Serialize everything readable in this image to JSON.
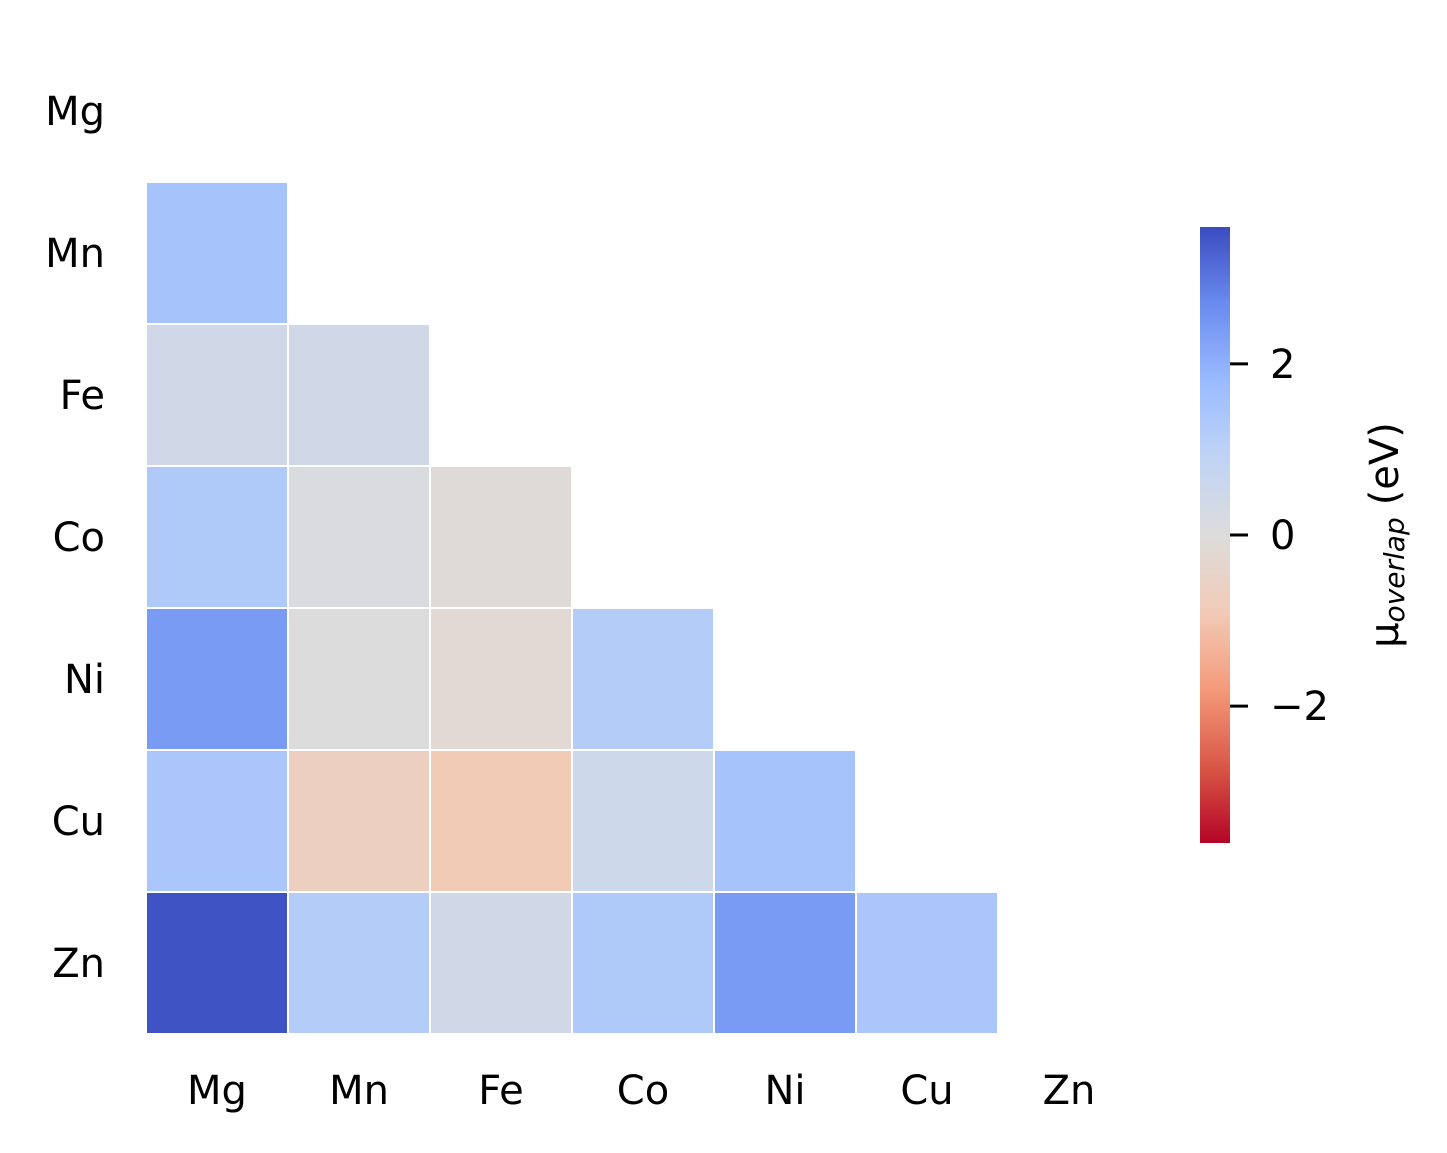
{
  "chart_data": {
    "type": "heatmap",
    "title": "",
    "xlabel": "",
    "ylabel": "",
    "categories": [
      "Mg",
      "Mn",
      "Fe",
      "Co",
      "Ni",
      "Cu",
      "Zn"
    ],
    "mask": "upper-triangle-including-diagonal",
    "cells": [
      {
        "row": "Mn",
        "col": "Mg",
        "value": 1.5
      },
      {
        "row": "Fe",
        "col": "Mg",
        "value": 0.4
      },
      {
        "row": "Fe",
        "col": "Mn",
        "value": 0.4
      },
      {
        "row": "Co",
        "col": "Mg",
        "value": 1.3
      },
      {
        "row": "Co",
        "col": "Mn",
        "value": 0.1
      },
      {
        "row": "Co",
        "col": "Fe",
        "value": -0.1
      },
      {
        "row": "Ni",
        "col": "Mg",
        "value": 2.4
      },
      {
        "row": "Ni",
        "col": "Mn",
        "value": 0.0
      },
      {
        "row": "Ni",
        "col": "Fe",
        "value": -0.2
      },
      {
        "row": "Ni",
        "col": "Co",
        "value": 1.2
      },
      {
        "row": "Cu",
        "col": "Mg",
        "value": 1.4
      },
      {
        "row": "Cu",
        "col": "Mn",
        "value": -0.7
      },
      {
        "row": "Cu",
        "col": "Fe",
        "value": -0.9
      },
      {
        "row": "Cu",
        "col": "Co",
        "value": 0.5
      },
      {
        "row": "Cu",
        "col": "Ni",
        "value": 1.5
      },
      {
        "row": "Zn",
        "col": "Mg",
        "value": 3.5
      },
      {
        "row": "Zn",
        "col": "Mn",
        "value": 1.2
      },
      {
        "row": "Zn",
        "col": "Fe",
        "value": 0.4
      },
      {
        "row": "Zn",
        "col": "Co",
        "value": 1.3
      },
      {
        "row": "Zn",
        "col": "Ni",
        "value": 2.4
      },
      {
        "row": "Zn",
        "col": "Cu",
        "value": 1.4
      }
    ],
    "colorbar": {
      "label_main": "μ",
      "label_sub": "overlap",
      "label_unit": "(eV)",
      "range": [
        -3.6,
        3.6
      ],
      "ticks": [
        2,
        0,
        -2
      ],
      "tick_labels": [
        "2",
        "0",
        "−2"
      ],
      "colormap": "coolwarm_r",
      "colormap_stops": [
        "#b40426",
        "#dddcdc",
        "#3b4cc0"
      ]
    },
    "grid": false,
    "cell_border_color": "#ffffff"
  }
}
